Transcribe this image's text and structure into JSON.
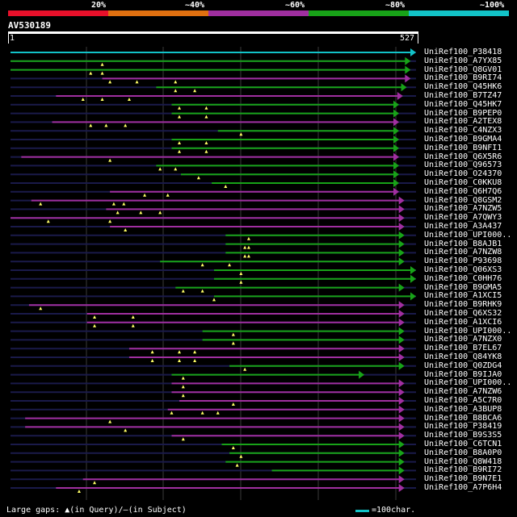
{
  "colors": {
    "cyan": "#12c3c8",
    "green": "#18a318",
    "purple": "#a02fa0",
    "orange": "#e07010",
    "red": "#e8102a",
    "navy": "#1a1a4a",
    "white": "#ffffff"
  },
  "legend": {
    "labels": [
      "20%",
      "~40%",
      "~60%",
      "~80%",
      "~100%"
    ],
    "bins": [
      "red",
      "orange",
      "purple",
      "green",
      "cyan"
    ]
  },
  "query": {
    "name": "AV530189",
    "start_label": "1",
    "end_label": "527",
    "length": 527
  },
  "hits": [
    {
      "name": "UniRef100_P38418",
      "color": "cyan",
      "start": 1,
      "end": 527,
      "marks": []
    },
    {
      "name": "UniRef100_A7YX85",
      "color": "green",
      "start": 1,
      "end": 520,
      "marks": [
        120
      ]
    },
    {
      "name": "UniRef100_Q8GV01",
      "color": "green",
      "start": 1,
      "end": 520,
      "marks": [
        105,
        120
      ]
    },
    {
      "name": "UniRef100_B9RI74",
      "color": "purple",
      "start": 120,
      "end": 520,
      "marks": [
        130,
        165,
        215
      ]
    },
    {
      "name": "UniRef100_Q45HK6",
      "color": "green",
      "start": 190,
      "end": 515,
      "marks": [
        215,
        240
      ]
    },
    {
      "name": "UniRef100_B7TZ47",
      "color": "purple",
      "start": 60,
      "end": 510,
      "marks": [
        95,
        120,
        155
      ]
    },
    {
      "name": "UniRef100_Q45HK7",
      "color": "green",
      "start": 210,
      "end": 505,
      "marks": [
        220,
        255
      ]
    },
    {
      "name": "UniRef100_B9PEP0",
      "color": "green",
      "start": 210,
      "end": 505,
      "marks": [
        220,
        255
      ]
    },
    {
      "name": "UniRef100_A2TEX8",
      "color": "purple",
      "start": 55,
      "end": 505,
      "marks": [
        105,
        125,
        150
      ]
    },
    {
      "name": "UniRef100_C4NZX3",
      "color": "green",
      "start": 270,
      "end": 505,
      "marks": [
        300
      ]
    },
    {
      "name": "UniRef100_B9GMA4",
      "color": "green",
      "start": 210,
      "end": 505,
      "marks": [
        220,
        255
      ]
    },
    {
      "name": "UniRef100_B9NFI1",
      "color": "green",
      "start": 210,
      "end": 505,
      "marks": [
        220,
        255
      ]
    },
    {
      "name": "UniRef100_Q6X5R6",
      "color": "purple",
      "start": 15,
      "end": 505,
      "marks": [
        130
      ]
    },
    {
      "name": "UniRef100_Q96573",
      "color": "green",
      "start": 190,
      "end": 505,
      "marks": [
        195,
        215
      ]
    },
    {
      "name": "UniRef100_O24370",
      "color": "green",
      "start": 222,
      "end": 505,
      "marks": [
        245
      ]
    },
    {
      "name": "UniRef100_C0KKU8",
      "color": "green",
      "start": 262,
      "end": 505,
      "marks": [
        280
      ]
    },
    {
      "name": "UniRef100_Q6H7Q6",
      "color": "purple",
      "start": 130,
      "end": 505,
      "marks": [
        175,
        205
      ]
    },
    {
      "name": "UniRef100_Q8GSM2",
      "color": "purple",
      "start": 28,
      "end": 512,
      "marks": [
        40,
        135,
        148
      ]
    },
    {
      "name": "UniRef100_A7NZW5",
      "color": "purple",
      "start": 125,
      "end": 512,
      "marks": [
        140,
        170,
        195
      ]
    },
    {
      "name": "UniRef100_A7QWY3",
      "color": "purple",
      "start": 1,
      "end": 512,
      "marks": [
        50,
        130
      ]
    },
    {
      "name": "UniRef100_A3A437",
      "color": "purple",
      "start": 130,
      "end": 512,
      "marks": [
        150
      ]
    },
    {
      "name": "UniRef100_UPI000..",
      "color": "green",
      "start": 280,
      "end": 512,
      "marks": [
        310
      ]
    },
    {
      "name": "UniRef100_B8AJB1",
      "color": "green",
      "start": 280,
      "end": 512,
      "marks": [
        305,
        310
      ]
    },
    {
      "name": "UniRef100_A7NZW8",
      "color": "green",
      "start": 280,
      "end": 512,
      "marks": [
        305,
        310
      ]
    },
    {
      "name": "UniRef100_P93698",
      "color": "green",
      "start": 195,
      "end": 512,
      "marks": [
        250,
        285
      ]
    },
    {
      "name": "UniRef100_Q06XS3",
      "color": "green",
      "start": 265,
      "end": 527,
      "marks": [
        300
      ]
    },
    {
      "name": "UniRef100_C0HH76",
      "color": "green",
      "start": 265,
      "end": 527,
      "marks": [
        300
      ]
    },
    {
      "name": "UniRef100_B9GMA5",
      "color": "green",
      "start": 215,
      "end": 512,
      "marks": [
        225,
        250
      ]
    },
    {
      "name": "UniRef100_A1XCI5",
      "color": "green",
      "start": 265,
      "end": 527,
      "marks": [
        265
      ]
    },
    {
      "name": "UniRef100_B9RHK9",
      "color": "purple",
      "start": 25,
      "end": 512,
      "marks": [
        40
      ]
    },
    {
      "name": "UniRef100_Q6XS32",
      "color": "purple",
      "start": 100,
      "end": 512,
      "marks": [
        110,
        160
      ]
    },
    {
      "name": "UniRef100_A1XCI6",
      "color": "purple",
      "start": 100,
      "end": 512,
      "marks": [
        110,
        160
      ]
    },
    {
      "name": "UniRef100_UPI000..",
      "color": "green",
      "start": 250,
      "end": 512,
      "marks": [
        290
      ]
    },
    {
      "name": "UniRef100_A7NZX0",
      "color": "green",
      "start": 250,
      "end": 512,
      "marks": [
        290
      ]
    },
    {
      "name": "UniRef100_B7EL67",
      "color": "purple",
      "start": 155,
      "end": 512,
      "marks": [
        185,
        220,
        240
      ]
    },
    {
      "name": "UniRef100_Q84YK8",
      "color": "purple",
      "start": 155,
      "end": 512,
      "marks": [
        185,
        220,
        240
      ]
    },
    {
      "name": "UniRef100_Q0ZDG4",
      "color": "green",
      "start": 285,
      "end": 512,
      "marks": [
        305
      ]
    },
    {
      "name": "UniRef100_B9IJA0",
      "color": "green",
      "start": 210,
      "end": 460,
      "marks": [
        225
      ]
    },
    {
      "name": "UniRef100_UPI000..",
      "color": "purple",
      "start": 210,
      "end": 512,
      "marks": [
        225
      ]
    },
    {
      "name": "UniRef100_A7NZW6",
      "color": "purple",
      "start": 210,
      "end": 512,
      "marks": [
        225
      ]
    },
    {
      "name": "UniRef100_A5C7R0",
      "color": "purple",
      "start": 220,
      "end": 512,
      "marks": [
        290
      ]
    },
    {
      "name": "UniRef100_A3BUP8",
      "color": "purple",
      "start": 205,
      "end": 512,
      "marks": [
        210,
        250,
        270
      ]
    },
    {
      "name": "UniRef100_B8BCA6",
      "color": "purple",
      "start": 20,
      "end": 512,
      "marks": [
        130
      ]
    },
    {
      "name": "UniRef100_P38419",
      "color": "purple",
      "start": 20,
      "end": 512,
      "marks": [
        150
      ]
    },
    {
      "name": "UniRef100_B9S3S5",
      "color": "purple",
      "start": 210,
      "end": 512,
      "marks": [
        225
      ]
    },
    {
      "name": "UniRef100_C6TCN1",
      "color": "green",
      "start": 275,
      "end": 512,
      "marks": [
        290
      ]
    },
    {
      "name": "UniRef100_B8A0P0",
      "color": "green",
      "start": 285,
      "end": 512,
      "marks": [
        300
      ]
    },
    {
      "name": "UniRef100_Q8W418",
      "color": "green",
      "start": 280,
      "end": 512,
      "marks": [
        295
      ]
    },
    {
      "name": "UniRef100_B9RI72",
      "color": "green",
      "start": 340,
      "end": 512,
      "marks": []
    },
    {
      "name": "UniRef100_B9N7E1",
      "color": "purple",
      "start": 95,
      "end": 512,
      "marks": [
        110
      ]
    },
    {
      "name": "UniRef100_A7P6H4",
      "color": "purple",
      "start": 60,
      "end": 512,
      "marks": [
        90
      ]
    }
  ],
  "footer": {
    "large_gaps": "Large gaps:",
    "in_query": "(in Query)/",
    "in_subject": "(in Subject)",
    "scale": "=100char."
  }
}
